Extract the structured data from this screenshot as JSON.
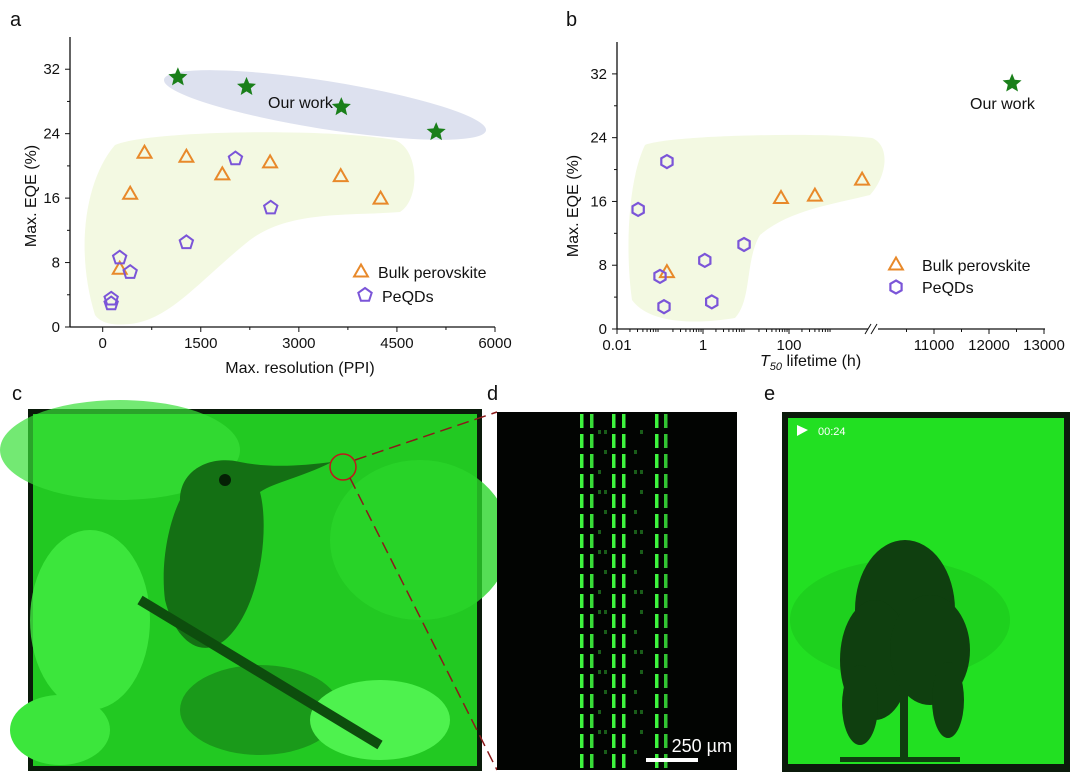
{
  "panels": {
    "a": "a",
    "b": "b",
    "c": "c",
    "d": "d",
    "e": "e"
  },
  "colors": {
    "bulk": "#e8892a",
    "peqds": "#7b55d8",
    "ours": "#1a7f1a",
    "ellipse": "#dde1ef",
    "region": "#f3f9e2",
    "display_green": "#1ee61e"
  },
  "chart_data": [
    {
      "type": "scatter",
      "panel": "a",
      "xlabel": "Max. resolution (PPI)",
      "ylabel": "Max. EQE (%)",
      "xlim": [
        -500,
        6000
      ],
      "ylim": [
        0,
        36
      ],
      "xticks": [
        0,
        1500,
        3000,
        4500,
        6000
      ],
      "yticks": [
        0,
        8,
        16,
        24,
        32
      ],
      "annotation": "Our work",
      "legend": {
        "placement": "lower-right",
        "entries": [
          "Bulk perovskite",
          "PeQDs"
        ]
      },
      "series": [
        {
          "name": "Our work",
          "marker": "star",
          "points": [
            [
              1150,
              31.0
            ],
            [
              2200,
              29.8
            ],
            [
              3650,
              27.3
            ],
            [
              5100,
              24.2
            ]
          ]
        },
        {
          "name": "Bulk perovskite",
          "marker": "triangle",
          "points": [
            [
              640,
              21.7
            ],
            [
              1280,
              21.2
            ],
            [
              2560,
              20.5
            ],
            [
              1830,
              19.0
            ],
            [
              3640,
              18.8
            ],
            [
              420,
              16.6
            ],
            [
              4250,
              16.0
            ],
            [
              260,
              7.3
            ]
          ]
        },
        {
          "name": "PeQDs",
          "marker": "pentagon",
          "points": [
            [
              2030,
              20.9
            ],
            [
              2570,
              14.8
            ],
            [
              1280,
              10.5
            ],
            [
              260,
              8.6
            ],
            [
              420,
              6.8
            ],
            [
              130,
              3.5
            ],
            [
              130,
              2.9
            ]
          ]
        }
      ]
    },
    {
      "type": "scatter",
      "panel": "b",
      "xlabel_italic": "T",
      "xlabel_sub": "50",
      "xlabel": " lifetime  (h)",
      "ylabel": "Max. EQE (%)",
      "xscale": "log (0.01–1000) with axis break, then linear (11000–13000)",
      "xlim": [
        0.01,
        13000
      ],
      "ylim": [
        0,
        36
      ],
      "xtick_labels": [
        "0.01",
        "1",
        "100",
        "11000",
        "12000",
        "13000"
      ],
      "yticks": [
        0,
        8,
        16,
        24,
        32
      ],
      "annotation": "Our work",
      "legend": {
        "placement": "lower-right",
        "entries": [
          "Bulk perovskite",
          "PeQDs"
        ]
      },
      "series": [
        {
          "name": "Our work",
          "marker": "star",
          "points": [
            [
              12420,
              30.8
            ]
          ]
        },
        {
          "name": "Bulk perovskite",
          "marker": "triangle",
          "points": [
            [
              0.145,
              7.2
            ],
            [
              65,
              16.5
            ],
            [
              400,
              16.8
            ],
            [
              5000,
              18.8
            ]
          ]
        },
        {
          "name": "PeQDs",
          "marker": "hexagon",
          "points": [
            [
              0.145,
              21.0
            ],
            [
              0.031,
              15.0
            ],
            [
              0.1,
              6.6
            ],
            [
              0.124,
              2.8
            ],
            [
              1.1,
              8.6
            ],
            [
              1.6,
              3.4
            ],
            [
              9,
              10.6
            ]
          ]
        }
      ]
    }
  ],
  "images": {
    "d_scale_bar": "250 µm",
    "e_timestamp": "00:24"
  }
}
